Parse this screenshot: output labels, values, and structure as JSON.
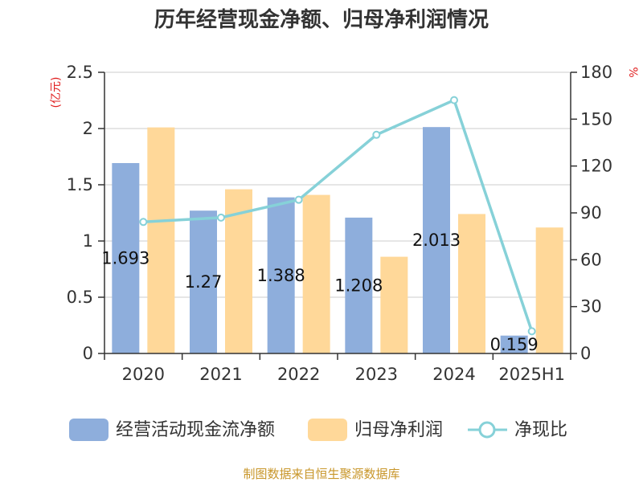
{
  "chart_data": {
    "type": "bar",
    "title": "历年经营现金净额、归母净利润情况",
    "categories": [
      "2020",
      "2021",
      "2022",
      "2023",
      "2024",
      "2025H1"
    ],
    "series": [
      {
        "name": "经营活动现金流净额",
        "kind": "bar",
        "axis": "left",
        "color": "#8eaedc",
        "values": [
          1.693,
          1.27,
          1.388,
          1.208,
          2.013,
          0.159
        ],
        "labels": [
          "1.693",
          "1.27",
          "1.388",
          "1.208",
          "2.013",
          "0.159"
        ]
      },
      {
        "name": "归母净利润",
        "kind": "bar",
        "axis": "left",
        "color": "#ffd899",
        "values": [
          2.01,
          1.46,
          1.41,
          0.86,
          1.24,
          1.12
        ]
      },
      {
        "name": "净现比",
        "kind": "line",
        "axis": "right",
        "color": "#86d1d8",
        "values": [
          84.2,
          87.0,
          98.4,
          140.0,
          162.2,
          14.2
        ]
      }
    ],
    "y_left": {
      "unit_label": "(亿元)",
      "range": [
        0,
        2.5
      ],
      "ticks": [
        "0",
        "0.5",
        "1",
        "1.5",
        "2",
        "2.5"
      ],
      "unit_color": "#e02020"
    },
    "y_right": {
      "unit_label": "%",
      "range": [
        0,
        180
      ],
      "ticks": [
        "0",
        "30",
        "60",
        "90",
        "120",
        "150",
        "180"
      ],
      "unit_color": "#e02020"
    },
    "grid": true,
    "legend_position": "bottom"
  },
  "source_text": "制图数据来自恒生聚源数据库",
  "source_color": "#c8962a"
}
